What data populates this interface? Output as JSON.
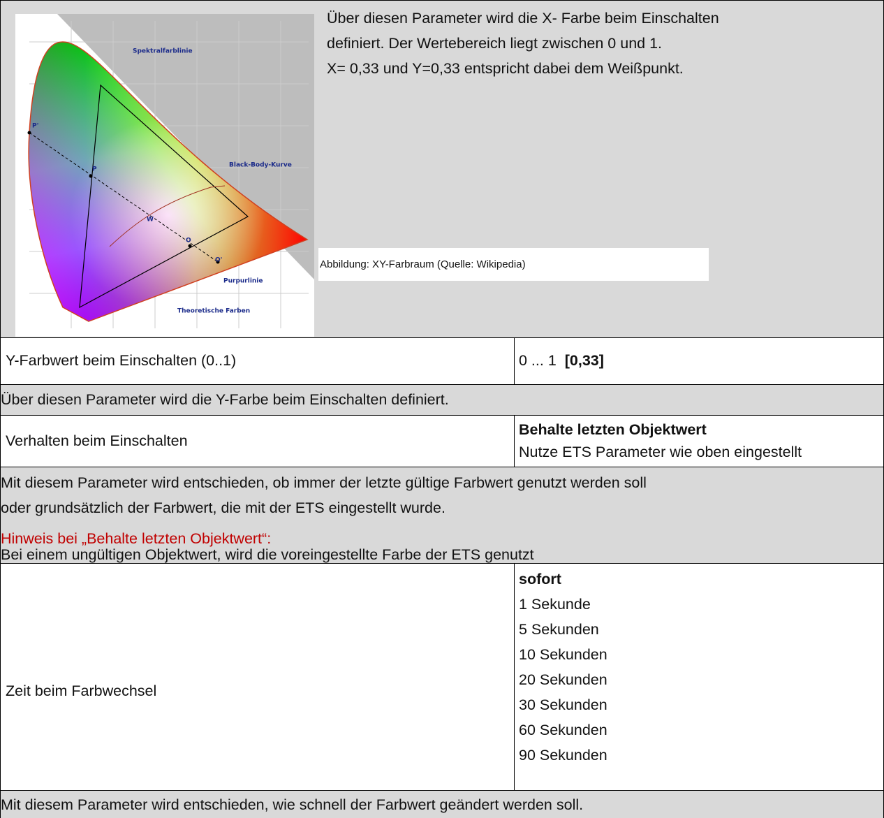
{
  "intro": {
    "lines": [
      "Über diesen Parameter wird die X- Farbe beim Einschalten",
      "definiert. Der Wertebereich liegt zwischen 0 und 1.",
      "X= 0,33 und Y=0,33 entspricht dabei dem Weißpunkt."
    ],
    "figure": {
      "caption": "Abbildung: XY-Farbraum (Quelle: Wikipedia)",
      "labels": [
        "Spektralfarblinie",
        "Black-Body-Kurve",
        "Purpurlinie",
        "Theoretische Farben",
        "P'",
        "P",
        "W",
        "O",
        "O'"
      ]
    }
  },
  "rows": [
    {
      "name": "Y-Farbwert beim Einschalten (0..1)",
      "range": "0 ... 1",
      "default": "[0,33]"
    },
    {
      "description": "Über diesen Parameter wird die Y-Farbe beim Einschalten definiert."
    },
    {
      "name": "Verhalten beim Einschalten",
      "options": [
        "Behalte letzten Objektwert",
        "Nutze ETS Parameter wie oben eingestellt"
      ]
    },
    {
      "description": [
        "Mit diesem Parameter wird entschieden, ob immer der letzte gültige Farbwert genutzt werden soll",
        "oder grundsätzlich der Farbwert, die mit der ETS eingestellt wurde."
      ],
      "note_title": "Hinweis bei „Behalte letzten Objektwert“:",
      "note": "Bei einem ungültigen Objektwert, wird die voreingestellte Farbe der ETS genutzt"
    },
    {
      "name": "Zeit beim Farbwechsel",
      "options": [
        "sofort",
        "1 Sekunde",
        "5 Sekunden",
        "10 Sekunden",
        "20 Sekunden",
        "30 Sekunden",
        "60 Sekunden",
        "90 Sekunden"
      ]
    },
    {
      "description": "Mit diesem Parameter wird entschieden, wie schnell der Farbwert geändert werden soll."
    }
  ]
}
